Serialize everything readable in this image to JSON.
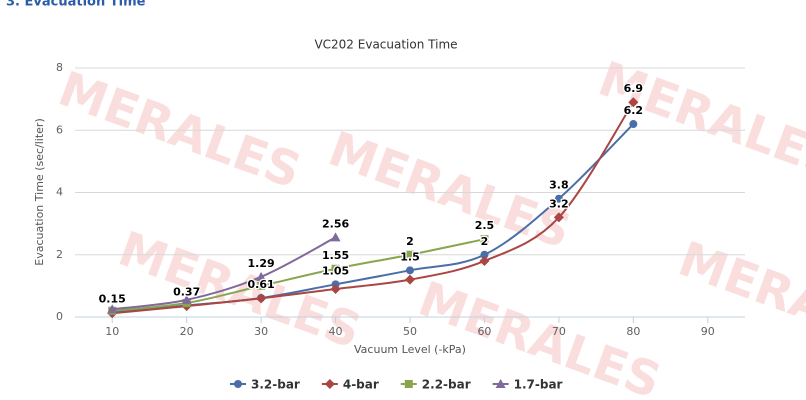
{
  "header": "3. Evacuation Time",
  "watermark": "MERALES",
  "chart_data": {
    "type": "line",
    "title": "VC202 Evacuation Time",
    "xlabel": "Vacuum Level (-kPa)",
    "ylabel": "Evacuation Time (sec/liter)",
    "x": [
      10,
      20,
      30,
      40,
      50,
      60,
      70,
      80
    ],
    "xlim": [
      5,
      95
    ],
    "xticks": [
      10,
      20,
      30,
      40,
      50,
      60,
      70,
      80,
      90
    ],
    "ylim": [
      0,
      8
    ],
    "yticks": [
      0,
      2,
      4,
      6,
      8
    ],
    "grid": true,
    "legend": "bottom",
    "series": [
      {
        "name": "3.2-bar",
        "color": "#4a6ea8",
        "marker": "circle",
        "values": [
          0.15,
          0.37,
          0.61,
          1.05,
          1.5,
          2,
          3.8,
          6.2
        ],
        "value_labels": [
          "0.15",
          "0.37",
          "0.61",
          "1.05",
          "1.5",
          "2",
          "3.8",
          "6.2"
        ]
      },
      {
        "name": "4-bar",
        "color": "#aa4643",
        "marker": "diamond",
        "values": [
          0.12,
          0.35,
          0.6,
          0.9,
          1.2,
          1.8,
          3.2,
          6.9
        ],
        "value_labels": [
          null,
          null,
          null,
          null,
          null,
          null,
          "3.2",
          "6.9"
        ]
      },
      {
        "name": "2.2-bar",
        "color": "#89a54e",
        "marker": "square",
        "values": [
          0.2,
          0.45,
          1.0,
          1.55,
          2,
          2.5,
          null,
          null
        ],
        "value_labels": [
          null,
          null,
          null,
          "1.55",
          "2",
          "2.5",
          null,
          null
        ]
      },
      {
        "name": "1.7-bar",
        "color": "#80699b",
        "marker": "triangle",
        "values": [
          0.25,
          0.55,
          1.29,
          2.56,
          null,
          null,
          null,
          null
        ],
        "value_labels": [
          null,
          null,
          "1.29",
          "2.56",
          null,
          null,
          null,
          null
        ]
      }
    ]
  }
}
